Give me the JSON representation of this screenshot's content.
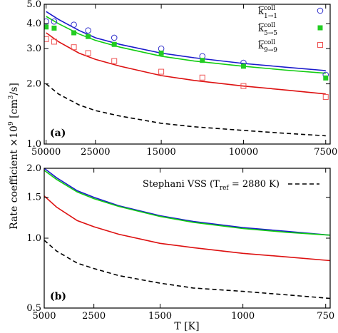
{
  "chart_data": {
    "ylabel": "Rate coefficient ×10",
    "ylabel_sup": "9",
    "ylabel_unit": "[cm",
    "ylabel_unit_sup": "3",
    "ylabel_unit_end": "/s]",
    "xlabel": "T [K]",
    "panels": [
      {
        "id": "a",
        "tag": "(a)",
        "type": "line+scatter",
        "x_scale": "reciprocal",
        "y_scale": "log",
        "xlim": [
          52000,
          7400
        ],
        "ylim": [
          1.0,
          5.0
        ],
        "x_ticks": [
          50000,
          25000,
          15000,
          10000,
          7500
        ],
        "x_tick_labels": [
          "50000",
          "25000",
          "15000",
          "10000",
          "7500"
        ],
        "y_ticks": [
          1.0,
          2.0,
          3.0,
          4.0,
          5.0
        ],
        "y_tick_labels": [
          "1.0",
          "2.0",
          "3.0",
          "4.0",
          "5.0"
        ],
        "legend_position": "top-right",
        "legend": [
          {
            "main": "k",
            "sup": "coll",
            "sub": "1→1",
            "marker": "circle",
            "color": "#3333cc"
          },
          {
            "main": "k",
            "sup": "coll",
            "sub": "5→5",
            "marker": "square-filled",
            "color": "#22cc22"
          },
          {
            "main": "k",
            "sup": "coll",
            "sub": "9→9",
            "marker": "square-open",
            "color": "#ee5555"
          }
        ],
        "series": [
          {
            "color": "#1a1acc",
            "style": "solid",
            "x": [
              50000,
              40000,
              30000,
              25000,
              20000,
              15000,
              12500,
              10000,
              8500,
              7500
            ],
            "y": [
              4.6,
              4.2,
              3.7,
              3.4,
              3.15,
              2.85,
              2.7,
              2.53,
              2.42,
              2.33
            ]
          },
          {
            "color": "#11cc11",
            "style": "solid",
            "x": [
              50000,
              40000,
              30000,
              25000,
              20000,
              15000,
              12500,
              10000,
              8500,
              7500
            ],
            "y": [
              4.35,
              4.0,
              3.55,
              3.3,
              3.05,
              2.75,
              2.6,
              2.45,
              2.34,
              2.26
            ]
          },
          {
            "color": "#dd1111",
            "style": "solid",
            "x": [
              50000,
              40000,
              30000,
              25000,
              20000,
              15000,
              12500,
              10000,
              8500,
              7500
            ],
            "y": [
              3.6,
              3.25,
              2.85,
              2.65,
              2.45,
              2.2,
              2.08,
              1.95,
              1.86,
              1.78
            ]
          },
          {
            "color": "#000000",
            "style": "dashed",
            "x": [
              50000,
              40000,
              30000,
              25000,
              20000,
              15000,
              12500,
              10000,
              8500,
              7500
            ],
            "y": [
              2.0,
              1.78,
              1.57,
              1.47,
              1.38,
              1.27,
              1.22,
              1.17,
              1.13,
              1.1
            ]
          },
          {
            "color": "#3333cc",
            "style": "marker-circle",
            "x": [
              50000,
              43000,
              32000,
              27000,
              21000,
              15000,
              12000,
              10000,
              7500
            ],
            "y": [
              4.1,
              4.1,
              3.95,
              3.7,
              3.4,
              3.0,
              2.75,
              2.55,
              2.22
            ]
          },
          {
            "color": "#22cc22",
            "style": "marker-square-filled",
            "x": [
              50000,
              43000,
              32000,
              27000,
              21000,
              15000,
              12000,
              10000,
              7500
            ],
            "y": [
              3.85,
              3.8,
              3.6,
              3.45,
              3.15,
              2.85,
              2.62,
              2.45,
              2.14
            ]
          },
          {
            "color": "#ee5555",
            "style": "marker-square-open",
            "x": [
              50000,
              43000,
              32000,
              27000,
              21000,
              15000,
              12000,
              10000,
              7500
            ],
            "y": [
              3.35,
              3.25,
              3.05,
              2.85,
              2.6,
              2.3,
              2.15,
              1.95,
              1.72
            ]
          }
        ]
      },
      {
        "id": "b",
        "tag": "(b)",
        "type": "line",
        "x_scale": "reciprocal",
        "y_scale": "log",
        "xlim": [
          5000,
          740
        ],
        "ylim": [
          0.5,
          2.0
        ],
        "x_ticks": [
          5000,
          2500,
          1500,
          1000,
          750
        ],
        "x_tick_labels": [
          "5000",
          "2500",
          "1500",
          "1000",
          "750"
        ],
        "y_ticks": [
          0.5,
          1.0,
          1.5,
          2.0
        ],
        "y_tick_labels": [
          "0.5",
          "1.0",
          "1.5",
          "2.0"
        ],
        "legend_position": "top-right",
        "legend": [
          {
            "text_pre": "Stephani VSS (T",
            "text_sub": "ref",
            "text_post": " = 2880 K)",
            "line": "dashed",
            "color": "#000000"
          }
        ],
        "series": [
          {
            "color": "#1a1acc",
            "style": "solid",
            "x": [
              5000,
              4000,
              3000,
              2500,
              2000,
              1500,
              1250,
              1000,
              850,
              740
            ],
            "y": [
              2.0,
              1.82,
              1.6,
              1.5,
              1.38,
              1.25,
              1.18,
              1.11,
              1.07,
              1.03
            ]
          },
          {
            "color": "#11cc11",
            "style": "solid",
            "x": [
              5000,
              4000,
              3000,
              2500,
              2000,
              1500,
              1250,
              1000,
              850,
              740
            ],
            "y": [
              1.96,
              1.79,
              1.58,
              1.48,
              1.37,
              1.24,
              1.17,
              1.1,
              1.06,
              1.03
            ]
          },
          {
            "color": "#dd1111",
            "style": "solid",
            "x": [
              5000,
              4000,
              3000,
              2500,
              2000,
              1500,
              1250,
              1000,
              850,
              740
            ],
            "y": [
              1.52,
              1.36,
              1.19,
              1.12,
              1.04,
              0.95,
              0.91,
              0.86,
              0.83,
              0.8
            ]
          },
          {
            "color": "#000000",
            "style": "dashed",
            "x": [
              5000,
              4000,
              3000,
              2500,
              2000,
              1500,
              1250,
              1000,
              850,
              740
            ],
            "y": [
              0.98,
              0.88,
              0.78,
              0.74,
              0.69,
              0.64,
              0.61,
              0.59,
              0.57,
              0.55
            ]
          }
        ]
      }
    ]
  }
}
